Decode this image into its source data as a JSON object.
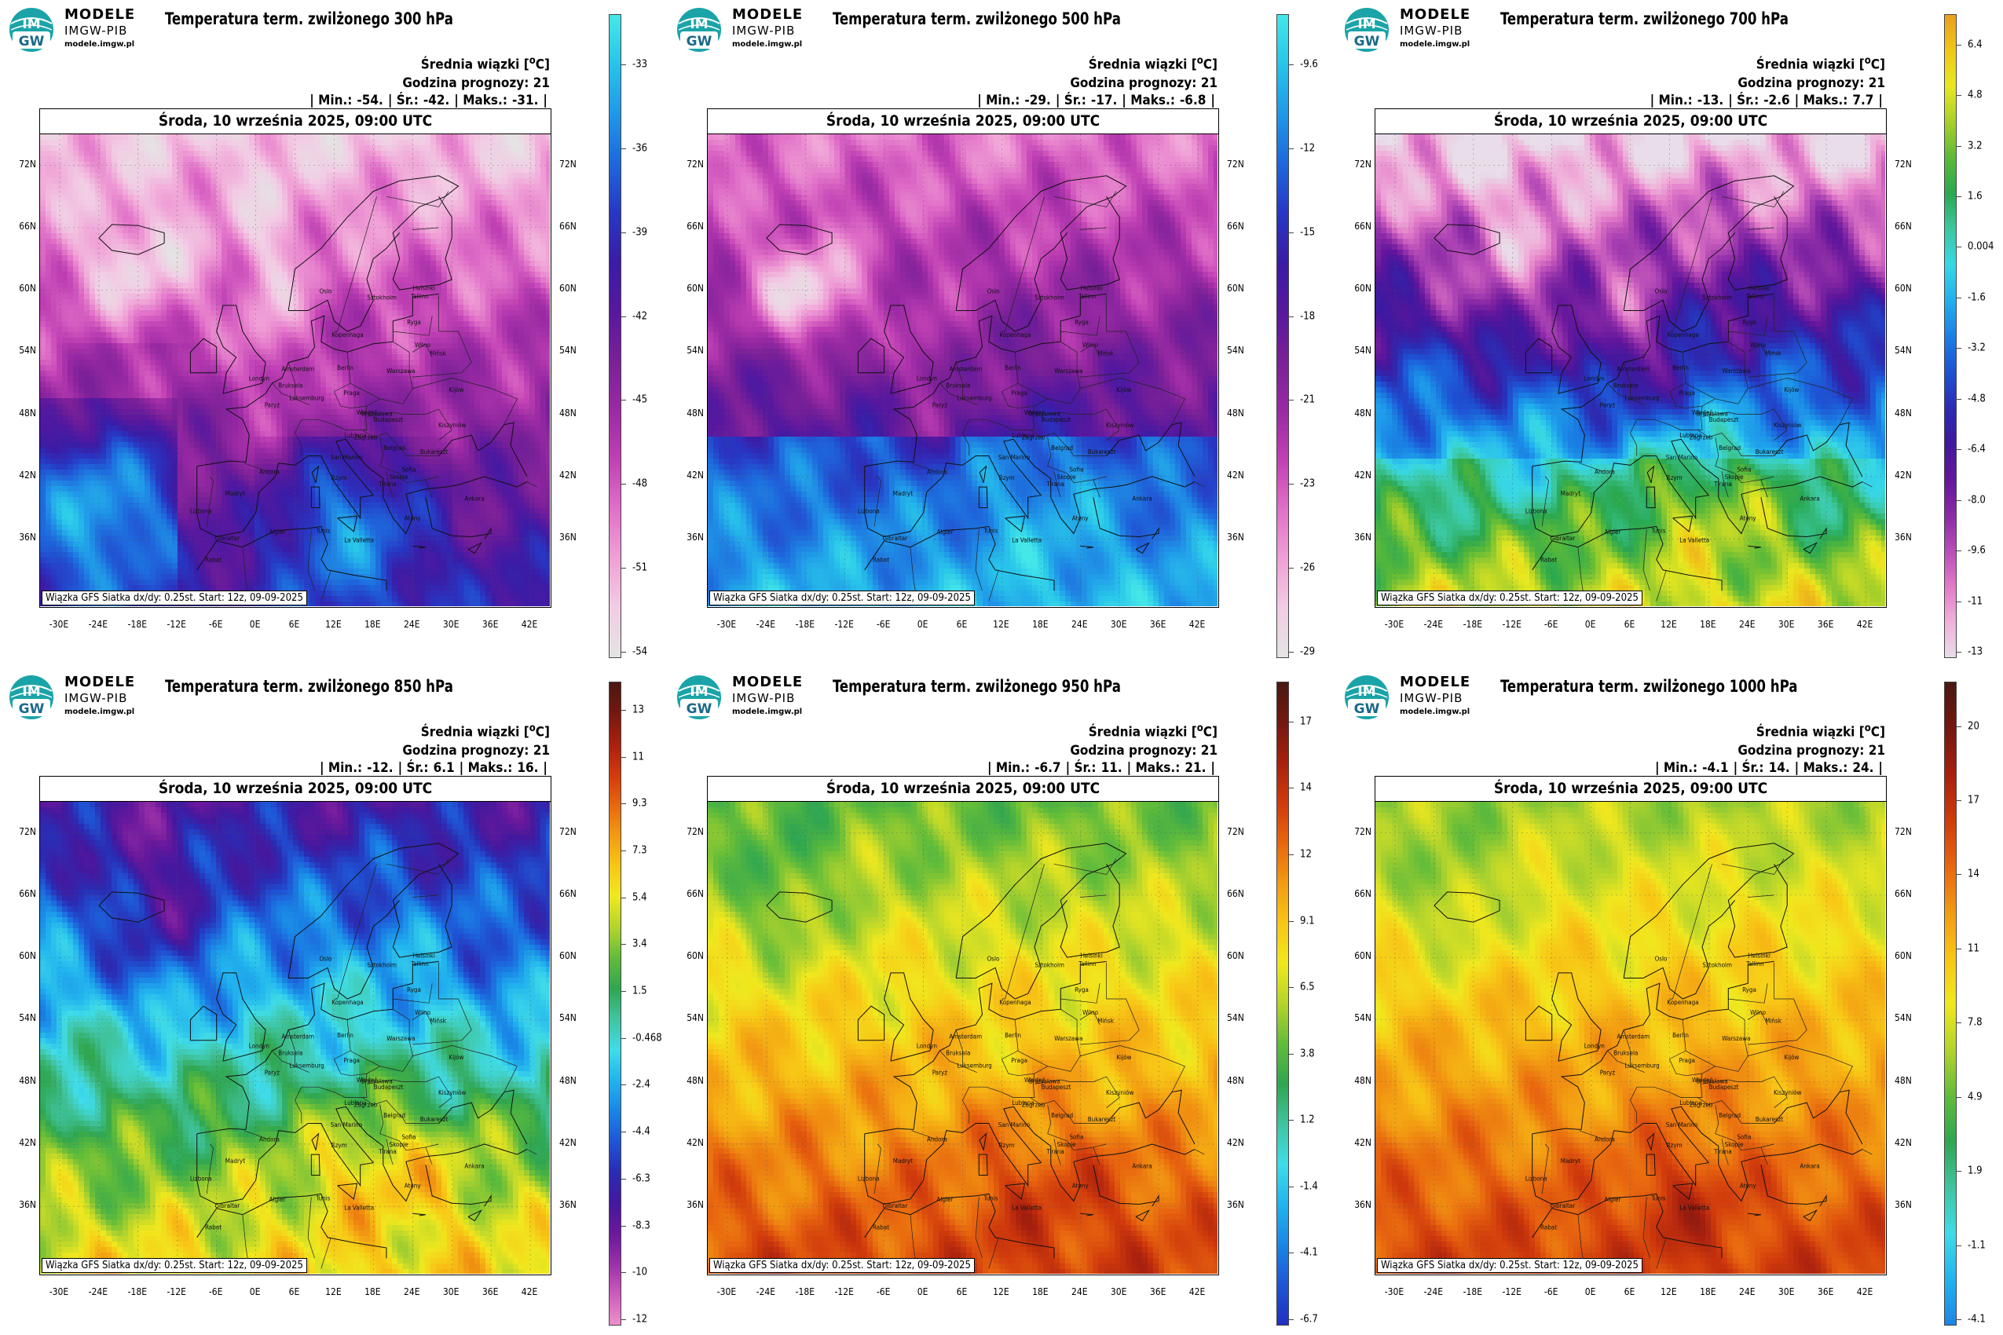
{
  "logo": {
    "line1": "MODELE",
    "line2": "IMGW-PIB",
    "line3": "modele.imgw.pl",
    "badge_top": "IM",
    "badge_bottom": "GW"
  },
  "info": {
    "label_mean": "Średnia wiązki [",
    "deg": "o",
    "label_mean_end": "C]",
    "label_hour": "Godzina prognozy: 21"
  },
  "date": "Środa, 10 września 2025, 09:00 UTC",
  "footer": "Wiązka GFS Siatka dx/dy: 0.25st. Start: 12z, 09-09-2025",
  "lat_labels": [
    "72N",
    "66N",
    "60N",
    "54N",
    "48N",
    "42N",
    "36N"
  ],
  "lon_labels": [
    "-30E",
    "-24E",
    "-18E",
    "-12E",
    "-6E",
    "0E",
    "6E",
    "12E",
    "18E",
    "24E",
    "30E",
    "36E",
    "42E"
  ],
  "cities": [
    "Oslo",
    "Sztokholm",
    "Helsinki",
    "Tallinn",
    "Ryga",
    "Wilno",
    "Kopenhaga",
    "Mińsk",
    "Londyn",
    "Amsterdam",
    "Berlin",
    "Warszawa",
    "Kijów",
    "Bruksela",
    "Paryż",
    "Luksemburg",
    "Praga",
    "Wiedeń",
    "Bratysława",
    "Budapeszt",
    "Kiszyniów",
    "Lublana",
    "Zagrzeb",
    "Belgrad",
    "Bukareszt",
    "Sofia",
    "Skopje",
    "Tirana",
    "Ateny",
    "Ankara",
    "Andora",
    "San Marino",
    "Rzym",
    "Madryt",
    "Lizbona",
    "Gibraltar",
    "Rabat",
    "Algier",
    "Tunis",
    "La Valletta"
  ],
  "colors": {
    "cold": [
      "#e8d8e4",
      "#f2c7e0",
      "#ec8ec9",
      "#c154b8",
      "#8a2fa6",
      "#5c1c9e",
      "#3a1d9e",
      "#2730b8",
      "#1f58d6",
      "#1f8ae8",
      "#22b8ee",
      "#3fdcea",
      "#48c09a",
      "#2fa852",
      "#62bf3a",
      "#b8d62c",
      "#f2ea1e",
      "#f8c516",
      "#f59a12",
      "#e8660f",
      "#d0380c",
      "#a8200e",
      "#741812",
      "#4a1a12"
    ]
  },
  "panels": [
    {
      "title": "Temperatura term. zwilżonego 300 hPa",
      "min": "-54.",
      "mean": "-42.",
      "max": "-31.",
      "scheme": "300",
      "colorbar": {
        "labels": [
          "-33",
          "-36",
          "-39",
          "-42",
          "-45",
          "-48",
          "-51",
          "-54"
        ],
        "stops": [
          "#45e8e8",
          "#28c4ea",
          "#2098e8",
          "#1e68dc",
          "#2738c4",
          "#3a1ca6",
          "#58189e",
          "#7a2098",
          "#9a2aa4",
          "#c040b4",
          "#e070c8",
          "#f0a0d6",
          "#f2cce4",
          "#e4e4e4"
        ]
      }
    },
    {
      "title": "Temperatura term. zwilżonego 500 hPa",
      "min": "-29.",
      "mean": "-17.",
      "max": "-6.8",
      "scheme": "500",
      "colorbar": {
        "labels": [
          "-9.6",
          "-12",
          "-15",
          "-18",
          "-21",
          "-23",
          "-26",
          "-29"
        ],
        "stops": [
          "#45e8e8",
          "#28c4ea",
          "#2098e8",
          "#1e68dc",
          "#2738c4",
          "#3a1ca6",
          "#58189e",
          "#7a2098",
          "#9a2aa4",
          "#c040b4",
          "#e070c8",
          "#f0a0d6",
          "#f2cce4",
          "#e4e4e4"
        ]
      }
    },
    {
      "title": "Temperatura term. zwilżonego 700 hPa",
      "min": "-13.",
      "mean": "-2.6",
      "max": "7.7",
      "scheme": "700",
      "colorbar": {
        "labels": [
          "6.4",
          "4.8",
          "3.2",
          "1.6",
          "0.004",
          "-1.6",
          "-3.2",
          "-4.8",
          "-6.4",
          "-8.0",
          "-9.6",
          "-11",
          "-13"
        ],
        "stops": [
          "#e8a020",
          "#f0c818",
          "#e8e820",
          "#a8d02a",
          "#5cba38",
          "#2aa850",
          "#3cc8a0",
          "#38d8e6",
          "#22b0ee",
          "#1a80e4",
          "#1e52d4",
          "#2a2cb4",
          "#40189e",
          "#62169c",
          "#8a2aa6",
          "#b84cb8",
          "#e27ac8",
          "#f0b0da",
          "#e8dde8"
        ]
      }
    },
    {
      "title": "Temperatura term. zwilżonego 850 hPa",
      "min": "-12.",
      "mean": "6.1",
      "max": "16.",
      "scheme": "850",
      "colorbar": {
        "labels": [
          "13",
          "11",
          "9.3",
          "7.3",
          "5.4",
          "3.4",
          "1.5",
          "-0.468",
          "-2.4",
          "-4.4",
          "-6.3",
          "-8.3",
          "-10",
          "-12"
        ],
        "stops": [
          "#4a1812",
          "#741810",
          "#a8200e",
          "#d03a0c",
          "#e8660f",
          "#f29a12",
          "#f8c616",
          "#f0e81e",
          "#b4d42c",
          "#62bc3a",
          "#30a650",
          "#40c4a0",
          "#40dce8",
          "#22b4ee",
          "#1a86e6",
          "#1e56d6",
          "#2a2cb4",
          "#44189e",
          "#6a189c",
          "#9a30a8",
          "#cc5cbc",
          "#ee90cc"
        ]
      }
    },
    {
      "title": "Temperatura term. zwilżonego 950 hPa",
      "min": "-6.7",
      "mean": "11.",
      "max": "21.",
      "scheme": "950",
      "colorbar": {
        "labels": [
          "17",
          "14",
          "12",
          "9.1",
          "6.5",
          "3.8",
          "1.2",
          "-1.4",
          "-4.1",
          "-6.7"
        ],
        "stops": [
          "#4a1812",
          "#741810",
          "#a8200e",
          "#d03a0c",
          "#e8660f",
          "#f29a12",
          "#f8c616",
          "#f0e81e",
          "#b4d42c",
          "#62bc3a",
          "#30a650",
          "#40c4a0",
          "#40dce8",
          "#22b4ee",
          "#1a86e6",
          "#1e56d6",
          "#2030c0"
        ]
      }
    },
    {
      "title": "Temperatura term. zwilżonego 1000 hPa",
      "min": "-4.1",
      "mean": "14.",
      "max": "24.",
      "scheme": "1000",
      "colorbar": {
        "labels": [
          "20",
          "17",
          "14",
          "11",
          "7.8",
          "4.9",
          "1.9",
          "-1.1",
          "-4.1"
        ],
        "stops": [
          "#4a1812",
          "#741810",
          "#a8200e",
          "#d03a0c",
          "#e8660f",
          "#f29a12",
          "#f8c616",
          "#f0e81e",
          "#b4d42c",
          "#62bc3a",
          "#30a650",
          "#40c4a0",
          "#40dce8",
          "#22b4ee",
          "#1a86e6"
        ]
      }
    }
  ]
}
